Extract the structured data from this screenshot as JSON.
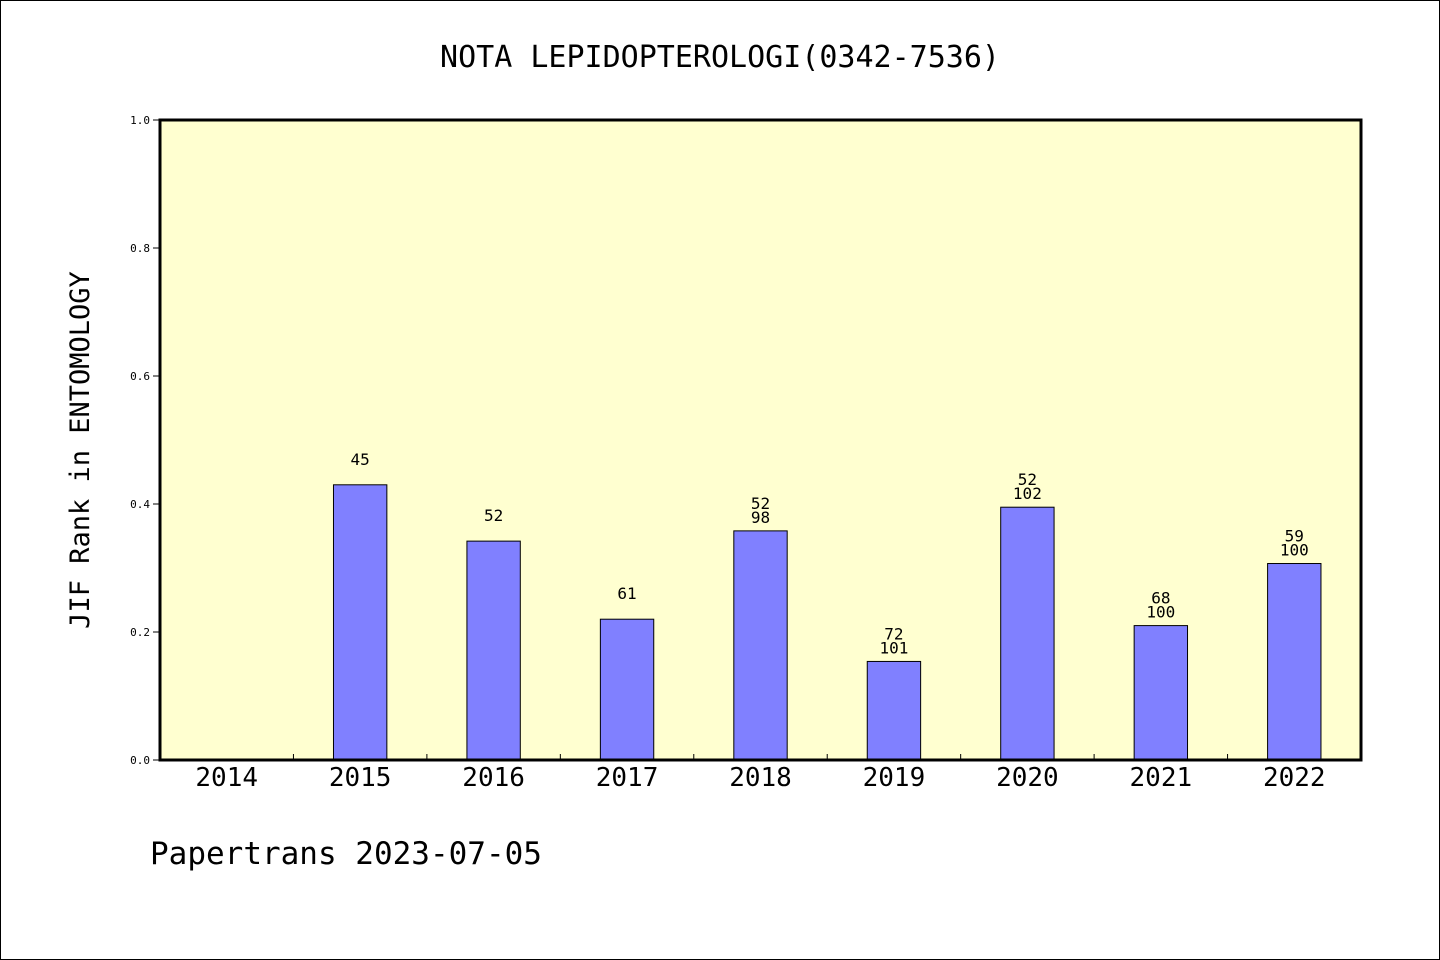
{
  "chart_data": {
    "type": "bar",
    "title": "NOTA LEPIDOPTEROLOGI(0342-7536)",
    "ylabel": "JIF Rank in ENTOMOLOGY",
    "xlabel": "",
    "ylim": [
      0,
      1.0
    ],
    "y_ticks": [
      "0.0",
      "0.2",
      "0.4",
      "0.6",
      "0.8",
      "1.0"
    ],
    "categories": [
      "2014",
      "2015",
      "2016",
      "2017",
      "2018",
      "2019",
      "2020",
      "2021",
      "2022"
    ],
    "values": [
      null,
      0.43,
      0.342,
      0.22,
      0.358,
      0.154,
      0.395,
      0.21,
      0.307
    ],
    "labels": [
      [],
      [
        "45"
      ],
      [
        "52"
      ],
      [
        "61"
      ],
      [
        "52",
        "98"
      ],
      [
        "72",
        "101"
      ],
      [
        "52",
        "102"
      ],
      [
        "68",
        "100"
      ],
      [
        "59",
        "100"
      ]
    ],
    "bar_color": "#8080ff",
    "plot_background": "#ffffd0",
    "grid": false,
    "legend": "none"
  },
  "footer": "Papertrans 2023-07-05"
}
